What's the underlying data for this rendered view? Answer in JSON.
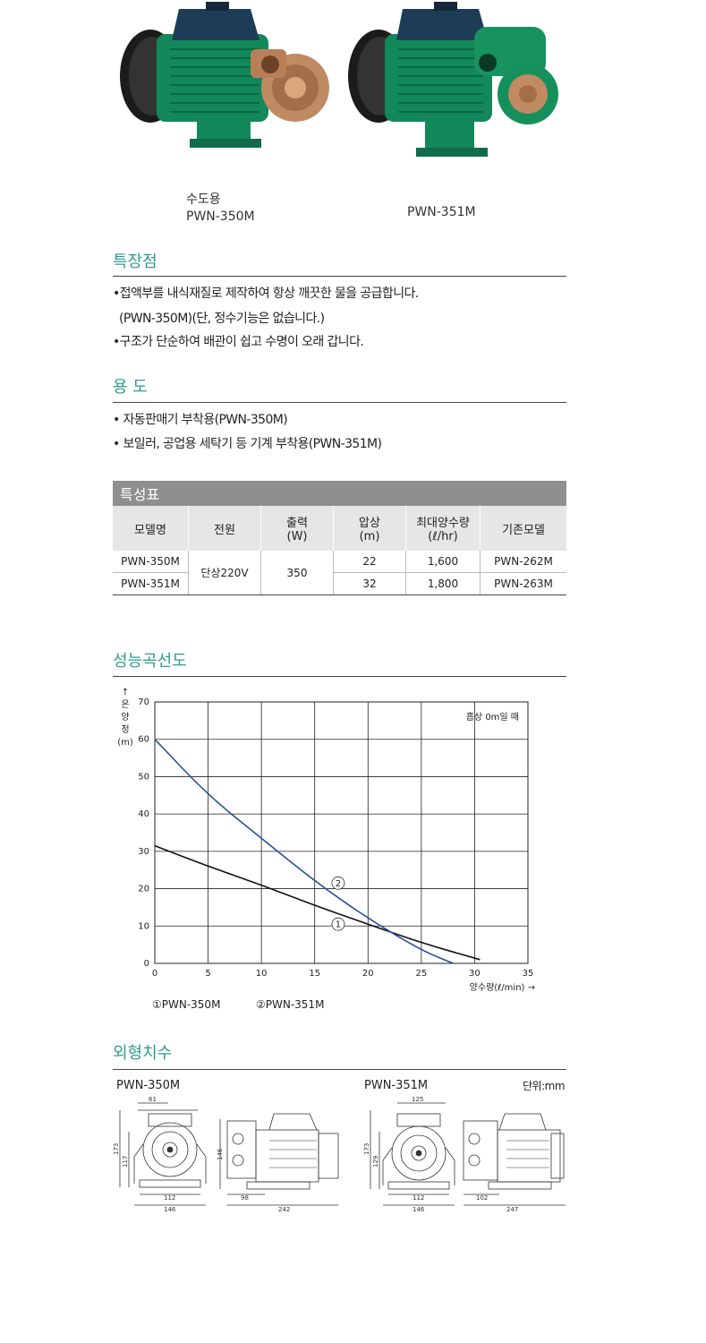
{
  "products": [
    {
      "caption_line1": "수도용",
      "caption_line2": "PWN-350M"
    },
    {
      "caption_line1": "",
      "caption_line2": "PWN-351M"
    }
  ],
  "features": {
    "title": "특장점",
    "items": [
      "•접액부를 내식재질로 제작하여 항상 깨끗한 물을 공급합니다.",
      "(PWN-350M)(단, 정수기능은 없습니다.)",
      "•구조가 단순하여 배관이 쉽고 수명이 오래 갑니다."
    ]
  },
  "usage": {
    "title": "용 도",
    "items": [
      "• 자동판매기 부착용(PWN-350M)",
      "• 보일러, 공업용 세탁기 등 기계 부착용(PWN-351M)"
    ]
  },
  "spec_table": {
    "caption": "특성표",
    "headers": [
      "모델명",
      "전원",
      "출력\n(W)",
      "압상\n(m)",
      "최대양수량\n(ℓ/hr)",
      "기존모델"
    ],
    "rows": [
      {
        "model": "PWN-350M",
        "power": "단상220V",
        "output": "350",
        "head": "22",
        "flow": "1,600",
        "old": "PWN-262M"
      },
      {
        "model": "PWN-351M",
        "power": "",
        "output": "",
        "head": "32",
        "flow": "1,800",
        "old": "PWN-263M"
      }
    ]
  },
  "performance": {
    "title": "성능곡선도",
    "note": "흡상 0m일 때",
    "legend": [
      "①PWN-350M",
      "②PWN-351M"
    ]
  },
  "chart_data": {
    "type": "line",
    "xlabel": "양수량(ℓ/min) →",
    "ylabel": "↑ 온 양 정 (m)",
    "xlim": [
      0,
      35
    ],
    "ylim": [
      0,
      70
    ],
    "x_ticks": [
      0,
      5,
      10,
      15,
      20,
      25,
      30,
      35
    ],
    "y_ticks": [
      0,
      10,
      20,
      30,
      40,
      50,
      60,
      70
    ],
    "grid": true,
    "series": [
      {
        "name": "①PWN-350M",
        "marker_label": "1",
        "color": "#111111",
        "x": [
          0,
          5,
          10,
          15,
          20,
          25,
          30.5
        ],
        "y": [
          31.5,
          26,
          21,
          15.5,
          10.5,
          5.5,
          1
        ]
      },
      {
        "name": "②PWN-351M",
        "marker_label": "2",
        "color": "#2a4f9c",
        "x": [
          0,
          5,
          10,
          15,
          20,
          25,
          28
        ],
        "y": [
          60,
          45,
          33.5,
          22,
          12,
          3.5,
          0
        ]
      }
    ]
  },
  "dimensions": {
    "title": "외형치수",
    "unit": "단위:mm",
    "models": [
      {
        "name": "PWN-350M",
        "front": {
          "top": "61",
          "height": "173",
          "inner": "117",
          "base": "112",
          "width": "146"
        },
        "side": {
          "height": "146",
          "base": "98",
          "length": "242"
        }
      },
      {
        "name": "PWN-351M",
        "front": {
          "top": "125",
          "height": "173",
          "inner": "129",
          "base": "112",
          "width": "146"
        },
        "side": {
          "base": "102",
          "length": "247"
        }
      }
    ]
  }
}
